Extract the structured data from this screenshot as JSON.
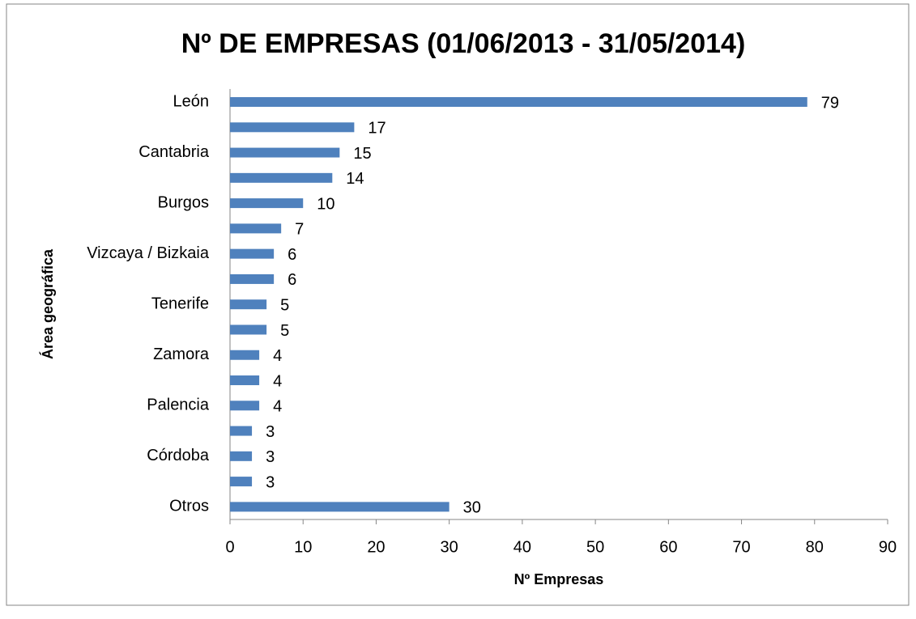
{
  "chart_data": {
    "type": "barh",
    "title": "Nº DE EMPRESAS (01/06/2013 - 31/05/2014)",
    "x_label": "Nº Empresas",
    "y_label": "Área geográfica",
    "categories": [
      "León",
      null,
      "Cantabria",
      null,
      "Burgos",
      null,
      "Vizcaya / Bizkaia",
      null,
      "Tenerife",
      null,
      "Zamora",
      null,
      "Palencia",
      null,
      "Córdoba",
      null,
      "Otros"
    ],
    "values": [
      79,
      17,
      15,
      14,
      10,
      7,
      6,
      6,
      5,
      5,
      4,
      4,
      4,
      3,
      3,
      3,
      30
    ],
    "color": "#4f81bd",
    "xlim": [
      0,
      90
    ],
    "xticks": [
      0,
      10,
      20,
      30,
      40,
      50,
      60,
      70,
      80,
      90
    ],
    "grid": false
  }
}
